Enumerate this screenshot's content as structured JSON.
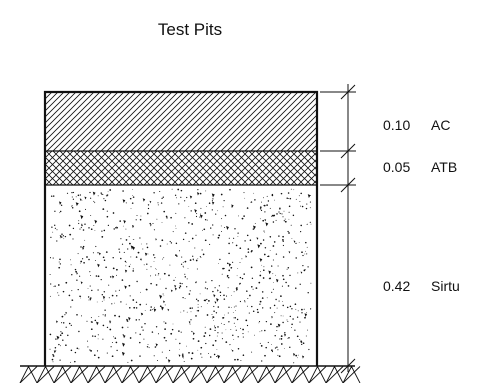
{
  "title": "Test Pits",
  "layers": [
    {
      "thickness": "0.10",
      "material": "AC",
      "pattern": "diagonal-hatch"
    },
    {
      "thickness": "0.05",
      "material": "ATB",
      "pattern": "cross-hatch"
    },
    {
      "thickness": "0.42",
      "material": "Sirtu",
      "pattern": "stipple"
    }
  ],
  "ground_pattern": "zigzag-hatch",
  "colors": {
    "line": "#111111",
    "background": "#ffffff"
  }
}
